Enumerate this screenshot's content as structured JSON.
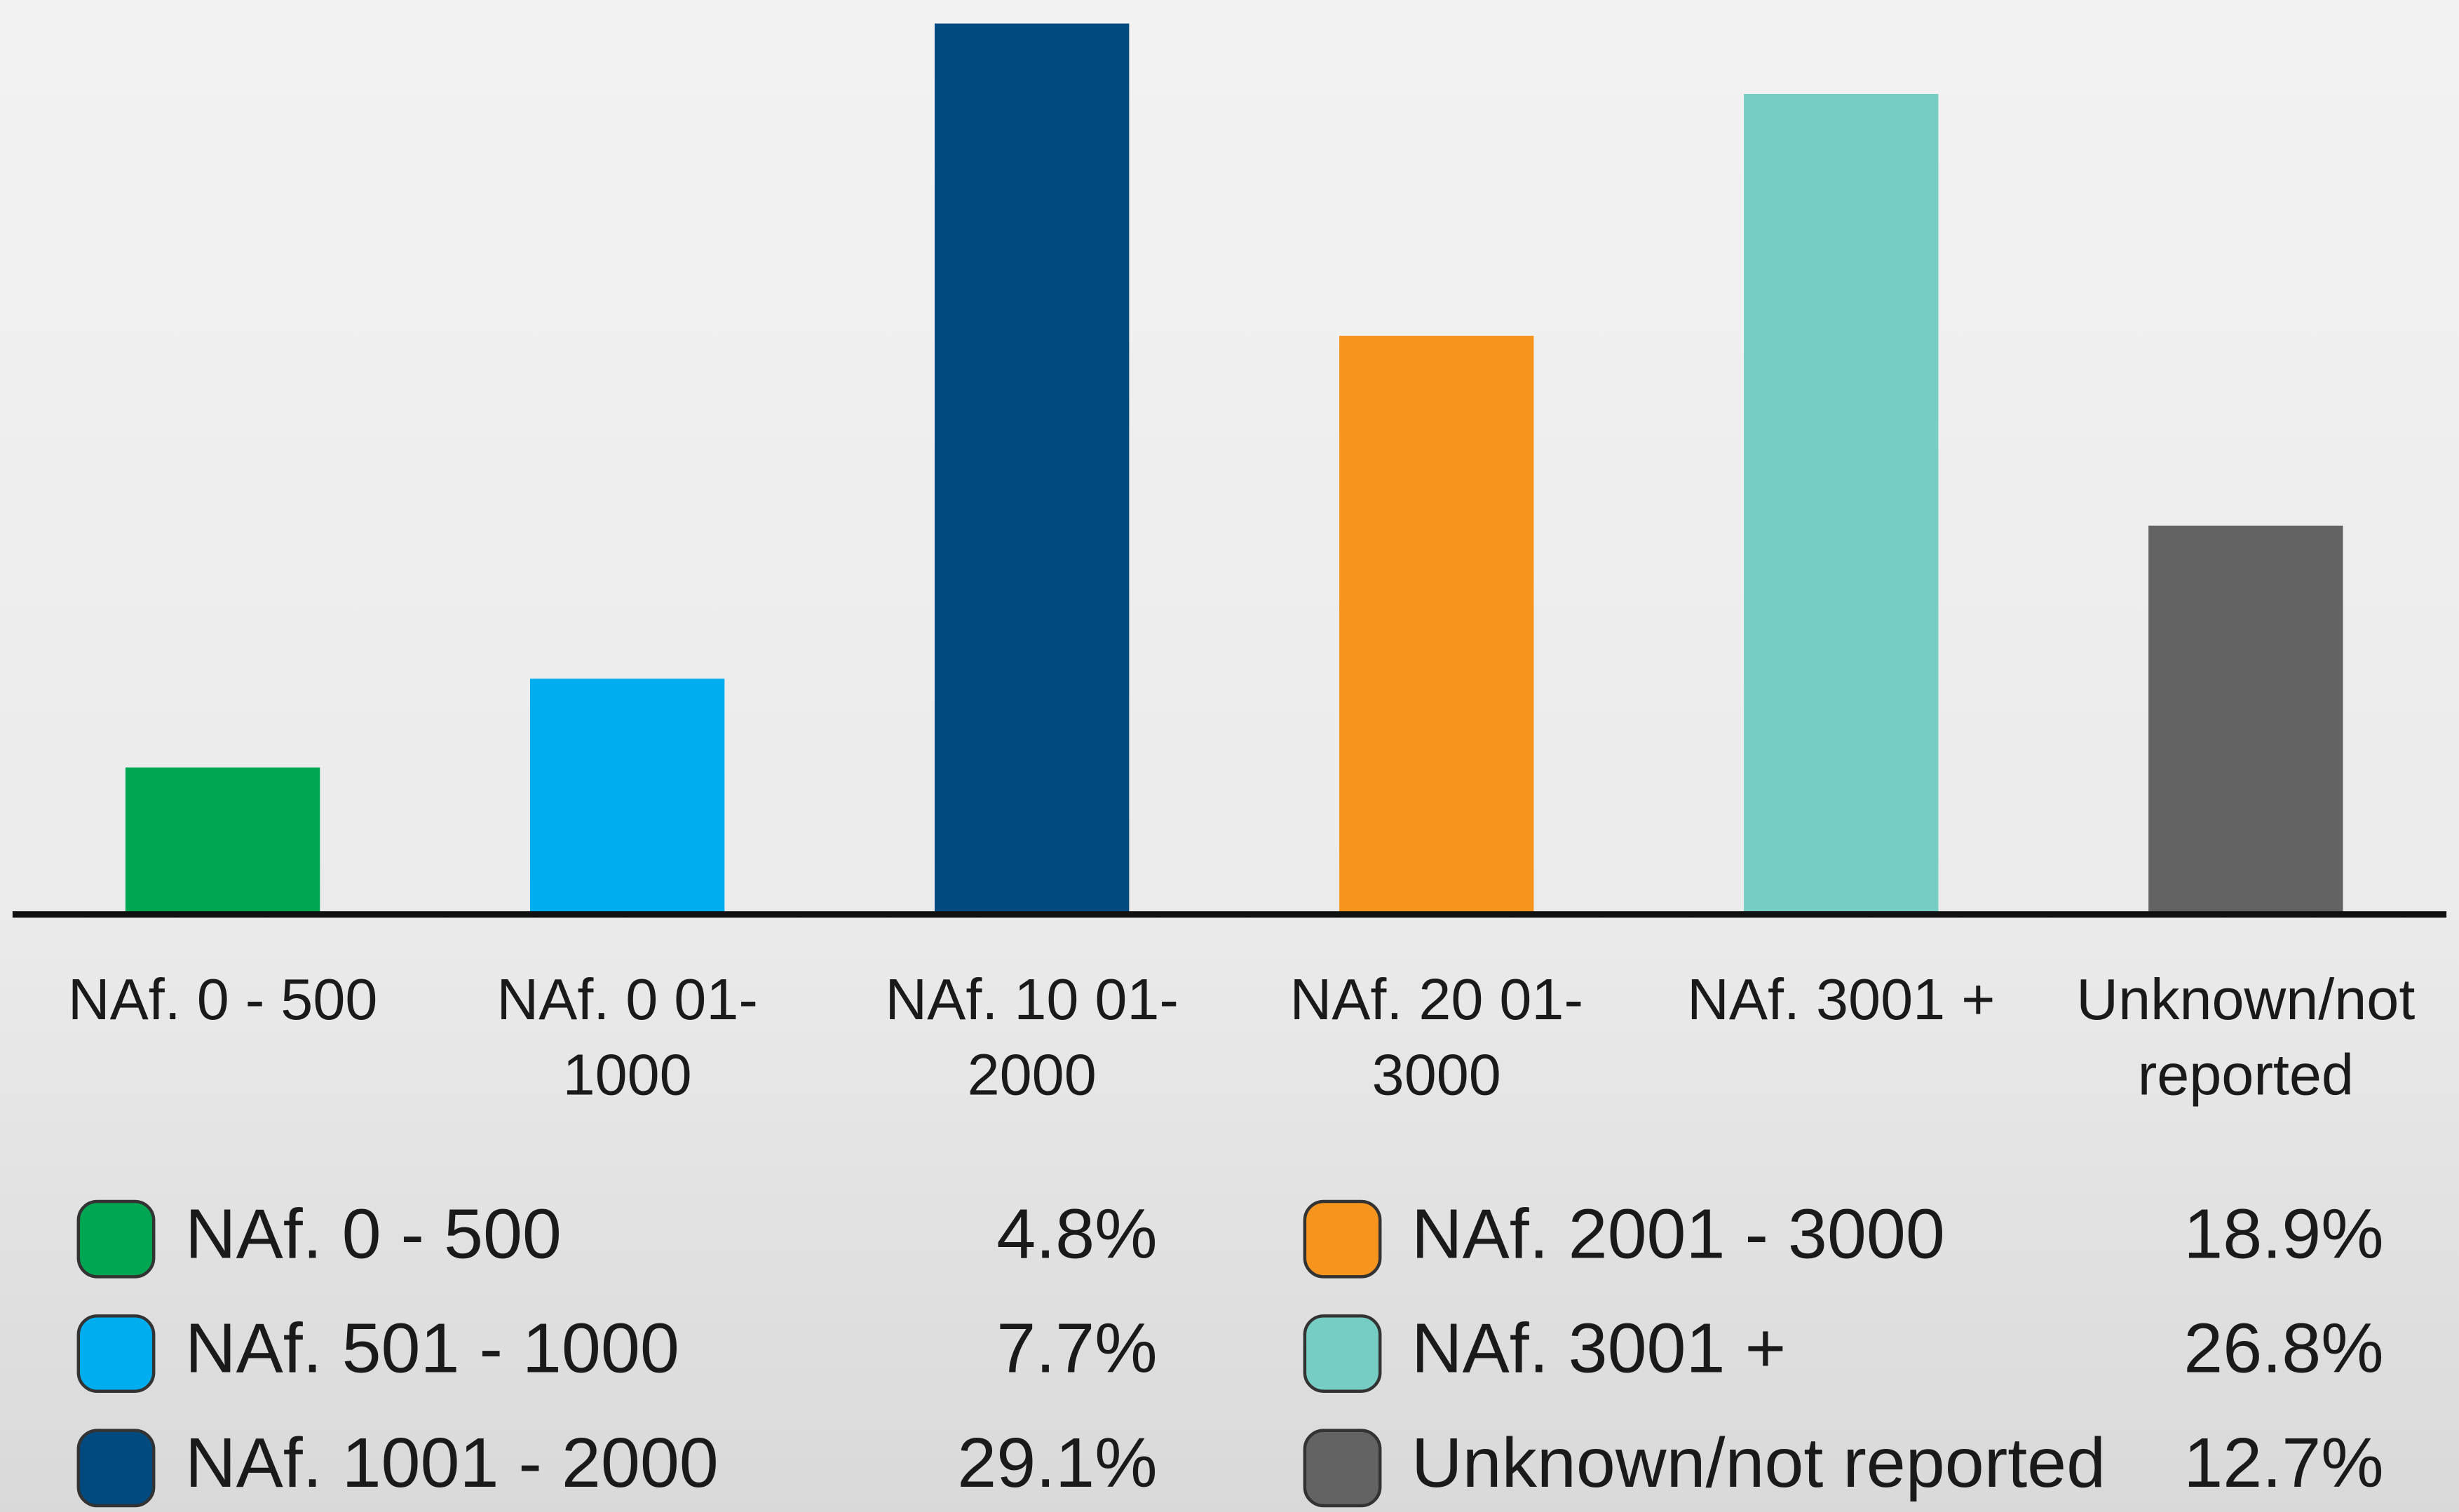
{
  "chart_data": {
    "type": "bar",
    "categories": [
      [
        "NAf. 0 - 500"
      ],
      [
        "NAf. 0 01-",
        "1000"
      ],
      [
        "NAf. 10 01-",
        "2000"
      ],
      [
        "NAf. 20 01-",
        "3000"
      ],
      [
        "NAf. 3001 +"
      ],
      [
        "Unknown/not",
        "reported"
      ]
    ],
    "legend": [
      "NAf. 0 - 500",
      "NAf. 501 - 1000",
      "NAf. 1001 - 2000",
      "NAf. 2001 - 3000",
      "NAf. 3001 +",
      "Unknown/not reported"
    ],
    "values": [
      4.8,
      7.7,
      29.1,
      18.9,
      26.8,
      12.7
    ],
    "value_labels": [
      "4.8%",
      "7.7%",
      "29.1%",
      "18.9%",
      "26.8%",
      "12.7%"
    ],
    "colors": [
      "#00a651",
      "#00aeef",
      "#004a80",
      "#f7941d",
      "#76cdc4",
      "#636363"
    ]
  }
}
